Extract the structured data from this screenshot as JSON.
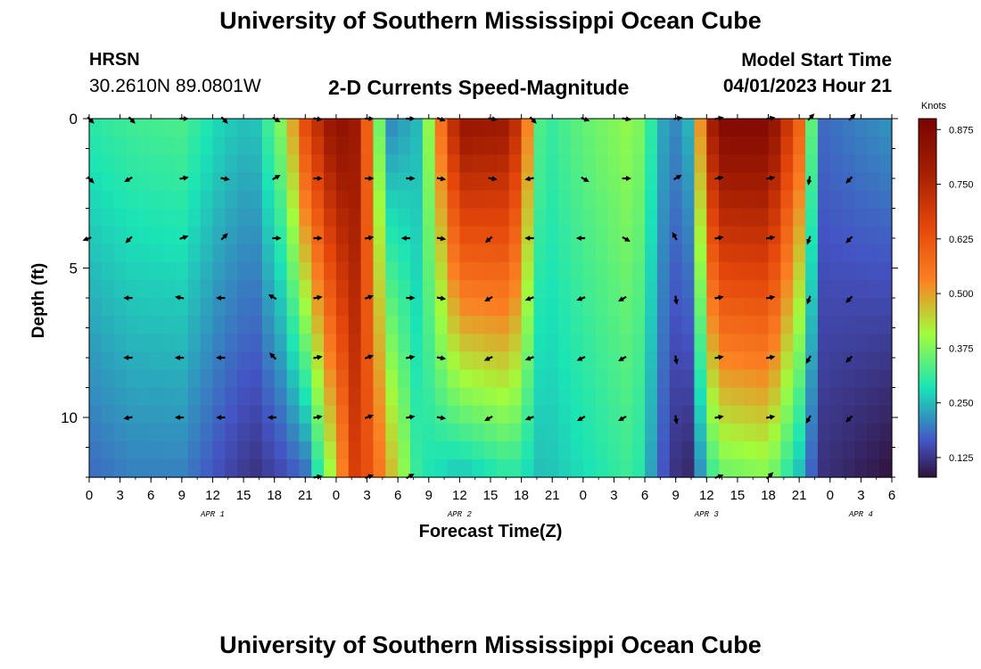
{
  "page": {
    "title": "University of Southern Mississippi Ocean Cube",
    "bottom_title": "University of Southern Mississippi Ocean Cube",
    "station": "HRSN",
    "coordinates": "30.2610N  89.0801W",
    "subtitle": "2-D Currents Speed-Magnitude",
    "model_start_label": "Model Start Time",
    "model_start_value": "04/01/2023 Hour 21",
    "colorbar_units": "Knots"
  },
  "chart_data": {
    "type": "heatmap",
    "title": "2-D Currents Speed-Magnitude",
    "xlabel": "Forecast Time(Z)",
    "ylabel": "Depth (ft)",
    "x_range_hours": [
      0,
      78
    ],
    "y_range_ft": [
      0,
      12
    ],
    "y_inverted": true,
    "x_tick_labels": [
      "0",
      "3",
      "6",
      "9",
      "12",
      "15",
      "18",
      "21",
      "0",
      "3",
      "6",
      "9",
      "12",
      "15",
      "18",
      "21",
      "0",
      "3",
      "6",
      "9",
      "12",
      "15",
      "18",
      "21",
      "0",
      "3",
      "6"
    ],
    "y_ticks": [
      0,
      5,
      10
    ],
    "date_labels": [
      {
        "label": "APR 1",
        "hour": 12
      },
      {
        "label": "APR 2",
        "hour": 36
      },
      {
        "label": "APR 3",
        "hour": 60
      },
      {
        "label": "APR 4",
        "hour": 75
      }
    ],
    "colorbar": {
      "min": 0.08,
      "max": 0.9,
      "ticks": [
        0.125,
        0.25,
        0.375,
        0.5,
        0.625,
        0.75,
        0.875
      ],
      "tick_labels": [
        "0.125",
        "0.250",
        "0.375",
        "0.500",
        "0.625",
        "0.750",
        "0.875"
      ]
    },
    "speed_knots_by_hour": [
      {
        "hour": 0,
        "surface": 0.3,
        "bottom": 0.18
      },
      {
        "hour": 4,
        "surface": 0.32,
        "bottom": 0.2
      },
      {
        "hour": 9,
        "surface": 0.33,
        "bottom": 0.2
      },
      {
        "hour": 13,
        "surface": 0.27,
        "bottom": 0.15
      },
      {
        "hour": 16,
        "surface": 0.25,
        "bottom": 0.12
      },
      {
        "hour": 19,
        "surface": 0.4,
        "bottom": 0.15
      },
      {
        "hour": 21,
        "surface": 0.65,
        "bottom": 0.18
      },
      {
        "hour": 24,
        "surface": 0.85,
        "bottom": 0.45
      },
      {
        "hour": 26,
        "surface": 0.8,
        "bottom": 0.7
      },
      {
        "hour": 29,
        "surface": 0.2,
        "bottom": 0.5
      },
      {
        "hour": 32,
        "surface": 0.25,
        "bottom": 0.3
      },
      {
        "hour": 36,
        "surface": 0.82,
        "bottom": 0.25
      },
      {
        "hour": 41,
        "surface": 0.8,
        "bottom": 0.3
      },
      {
        "hour": 44,
        "surface": 0.3,
        "bottom": 0.25
      },
      {
        "hour": 48,
        "surface": 0.35,
        "bottom": 0.28
      },
      {
        "hour": 53,
        "surface": 0.4,
        "bottom": 0.32
      },
      {
        "hour": 56,
        "surface": 0.22,
        "bottom": 0.15
      },
      {
        "hour": 58,
        "surface": 0.2,
        "bottom": 0.09
      },
      {
        "hour": 61,
        "surface": 0.88,
        "bottom": 0.35
      },
      {
        "hour": 66,
        "surface": 0.88,
        "bottom": 0.38
      },
      {
        "hour": 69,
        "surface": 0.6,
        "bottom": 0.25
      },
      {
        "hour": 71,
        "surface": 0.18,
        "bottom": 0.12
      },
      {
        "hour": 78,
        "surface": 0.22,
        "bottom": 0.08
      }
    ],
    "vector_columns": [
      {
        "hour": 0,
        "dirs": [
          135,
          135,
          250,
          null,
          null,
          null,
          null
        ]
      },
      {
        "hour": 4,
        "dirs": [
          135,
          240,
          225,
          270,
          270,
          260,
          null
        ]
      },
      {
        "hour": 9,
        "dirs": [
          90,
          80,
          70,
          280,
          270,
          270,
          null
        ]
      },
      {
        "hour": 13,
        "dirs": [
          135,
          100,
          45,
          270,
          270,
          270,
          null
        ]
      },
      {
        "hour": 18,
        "dirs": [
          120,
          60,
          90,
          300,
          315,
          270,
          null
        ]
      },
      {
        "hour": 22,
        "dirs": [
          100,
          90,
          90,
          80,
          80,
          80,
          80
        ]
      },
      {
        "hour": 27,
        "dirs": [
          90,
          90,
          80,
          70,
          70,
          70,
          70
        ]
      },
      {
        "hour": 31,
        "dirs": [
          90,
          90,
          270,
          90,
          80,
          80,
          60
        ]
      },
      {
        "hour": 34,
        "dirs": [
          110,
          100,
          100,
          100,
          100,
          100,
          null
        ]
      },
      {
        "hour": 39,
        "dirs": [
          100,
          100,
          230,
          240,
          245,
          240,
          null
        ]
      },
      {
        "hour": 43,
        "dirs": [
          135,
          260,
          270,
          250,
          250,
          250,
          null
        ]
      },
      {
        "hour": 48,
        "dirs": [
          110,
          120,
          270,
          250,
          245,
          240,
          null
        ]
      },
      {
        "hour": 52,
        "dirs": [
          100,
          90,
          120,
          240,
          240,
          240,
          null
        ]
      },
      {
        "hour": 57,
        "dirs": [
          80,
          60,
          330,
          170,
          170,
          170,
          null
        ]
      },
      {
        "hour": 61,
        "dirs": [
          80,
          80,
          80,
          80,
          80,
          80,
          70
        ]
      },
      {
        "hour": 66,
        "dirs": [
          80,
          80,
          80,
          80,
          80,
          80,
          45
        ]
      },
      {
        "hour": 70,
        "dirs": [
          45,
          190,
          200,
          200,
          210,
          210,
          null
        ]
      },
      {
        "hour": 74,
        "dirs": [
          45,
          225,
          225,
          225,
          225,
          225,
          null
        ]
      }
    ]
  }
}
